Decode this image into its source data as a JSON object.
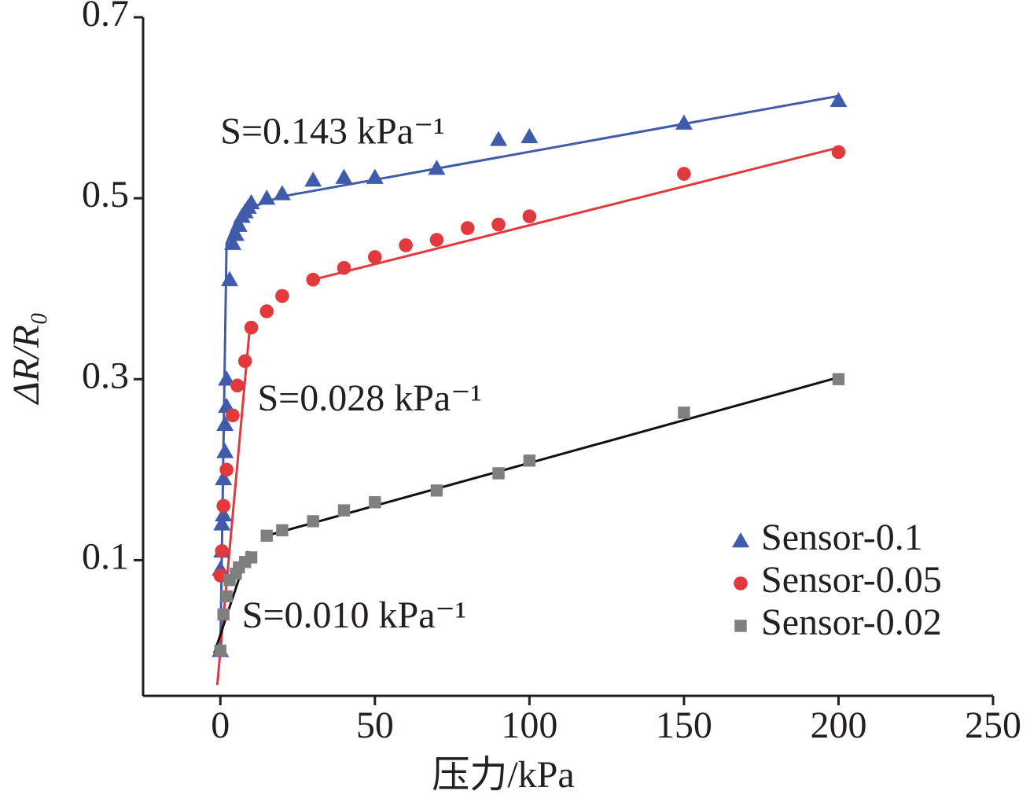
{
  "chart_data": {
    "type": "scatter",
    "xlabel": "压力/kPa",
    "ylabel": "ΔR/R₀",
    "xlim": [
      -25,
      250
    ],
    "xticks": [
      0,
      50,
      100,
      150,
      200,
      250
    ],
    "ylim": [
      -0.05,
      0.7
    ],
    "yticks": [
      0.1,
      0.3,
      0.5,
      0.7
    ],
    "grid": false,
    "legend": "lower right",
    "series": [
      {
        "name": "Sensor-0.1",
        "color": "#3f5ba9",
        "marker": "triangle",
        "x": [
          0,
          0,
          0.5,
          0.5,
          1,
          1,
          1.5,
          1.5,
          2,
          2,
          3,
          4,
          5,
          6,
          7,
          8,
          9,
          10,
          15,
          20,
          30,
          40,
          50,
          70,
          90,
          100,
          150,
          200
        ],
        "values": [
          0.0,
          0.09,
          0.11,
          0.14,
          0.15,
          0.19,
          0.22,
          0.25,
          0.27,
          0.3,
          0.41,
          0.45,
          0.46,
          0.47,
          0.48,
          0.485,
          0.49,
          0.495,
          0.5,
          0.505,
          0.52,
          0.523,
          0.523,
          0.533,
          0.565,
          0.568,
          0.583,
          0.608
        ]
      },
      {
        "name": "Sensor-0.05",
        "color": "#e0393e",
        "marker": "circle",
        "x": [
          0,
          0.5,
          1,
          2,
          4,
          5.5,
          8,
          10,
          15,
          20,
          30,
          40,
          50,
          60,
          70,
          80,
          90,
          100,
          150,
          200
        ],
        "values": [
          0.083,
          0.11,
          0.16,
          0.2,
          0.26,
          0.293,
          0.32,
          0.357,
          0.375,
          0.392,
          0.41,
          0.423,
          0.435,
          0.448,
          0.454,
          0.467,
          0.471,
          0.48,
          0.527,
          0.551
        ]
      },
      {
        "name": "Sensor-0.02",
        "color": "#7f7f7f",
        "marker": "square",
        "x": [
          0,
          1,
          2,
          3,
          5,
          6,
          8,
          10,
          15,
          20,
          30,
          40,
          50,
          70,
          90,
          100,
          150,
          200
        ],
        "values": [
          0.0,
          0.04,
          0.06,
          0.078,
          0.085,
          0.092,
          0.098,
          0.103,
          0.127,
          0.133,
          0.143,
          0.155,
          0.164,
          0.177,
          0.196,
          0.21,
          0.263,
          0.3
        ]
      }
    ],
    "fit_lines": [
      {
        "color": "#3f5ba9",
        "x": [
          0,
          2,
          5,
          10,
          20,
          200
        ],
        "y": [
          0.0,
          0.45,
          0.475,
          0.49,
          0.502,
          0.613
        ]
      },
      {
        "color": "#e0393e",
        "x": [
          -1,
          9.6
        ],
        "y": [
          -0.038,
          0.36
        ]
      },
      {
        "color": "#e0393e",
        "x": [
          30,
          200
        ],
        "y": [
          0.41,
          0.556
        ]
      },
      {
        "color": "#111111",
        "x": [
          -2,
          9
        ],
        "y": [
          -0.003,
          0.11
        ]
      },
      {
        "color": "#111111",
        "x": [
          15,
          200
        ],
        "y": [
          0.127,
          0.302
        ]
      }
    ],
    "annotations": [
      {
        "text": "S=0.143 kPa⁻¹",
        "x": 0,
        "y": 0.57
      },
      {
        "text": "S=0.028 kPa⁻¹",
        "x": 12,
        "y": 0.275
      },
      {
        "text": "S=0.010 kPa⁻¹",
        "x": 7,
        "y": 0.035
      }
    ]
  }
}
